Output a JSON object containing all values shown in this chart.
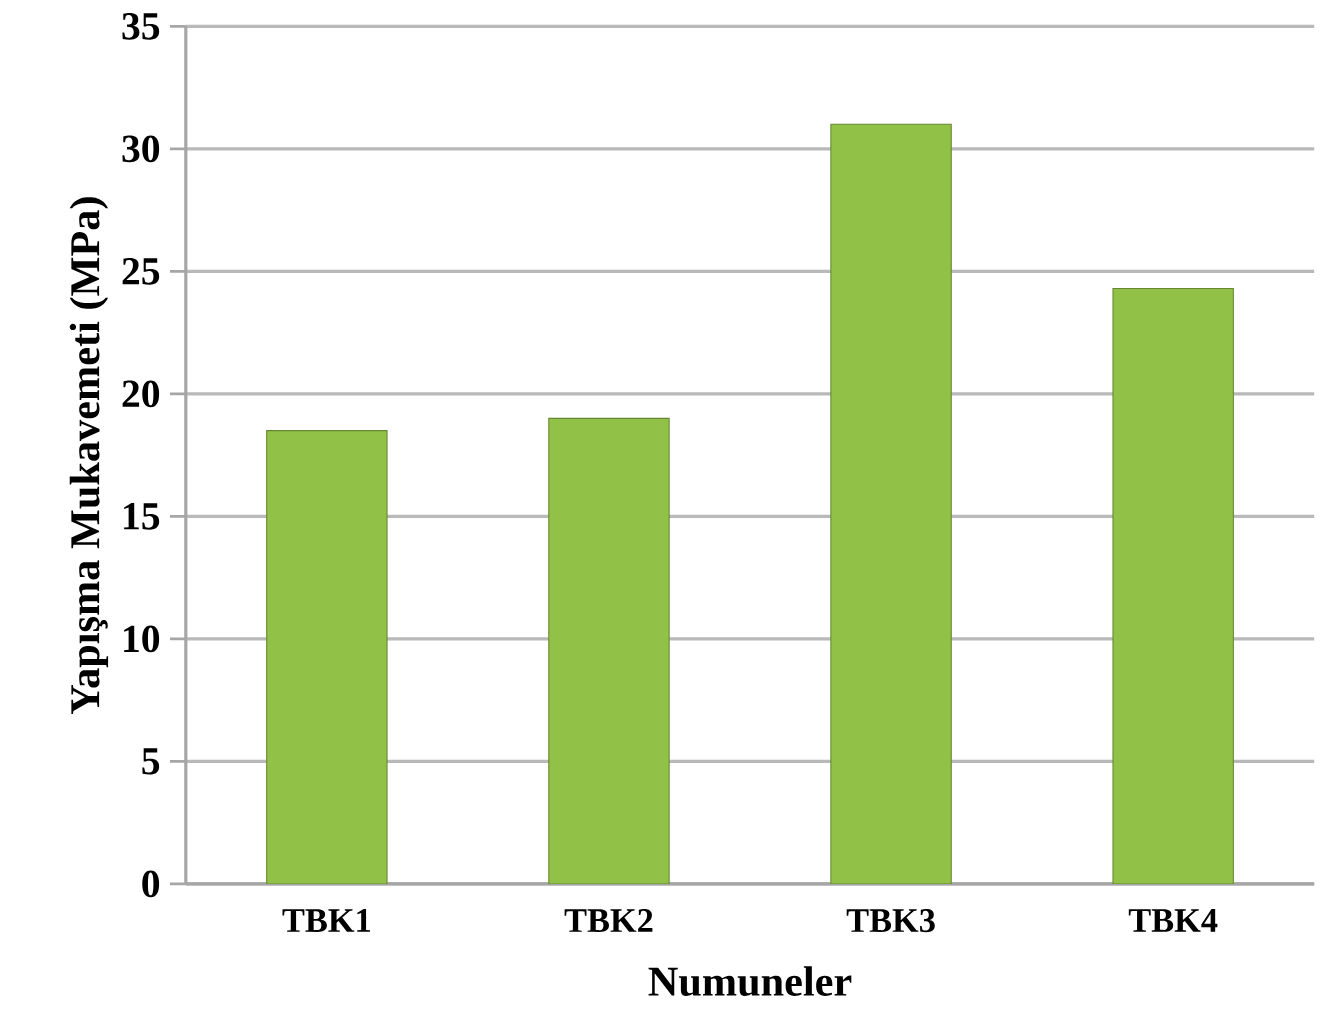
{
  "chart_data": {
    "type": "bar",
    "xlabel": "Numuneler",
    "ylabel": "Yapışma Mukavemeti (MPa)",
    "categories": [
      "TBK1",
      "TBK2",
      "TBK3",
      "TBK4"
    ],
    "values": [
      18.5,
      19,
      31,
      24.3
    ],
    "color": "#92c147",
    "ylim": [
      0,
      35
    ],
    "yticks": [
      0,
      5,
      10,
      15,
      20,
      25,
      30,
      35
    ],
    "grid": "y"
  }
}
